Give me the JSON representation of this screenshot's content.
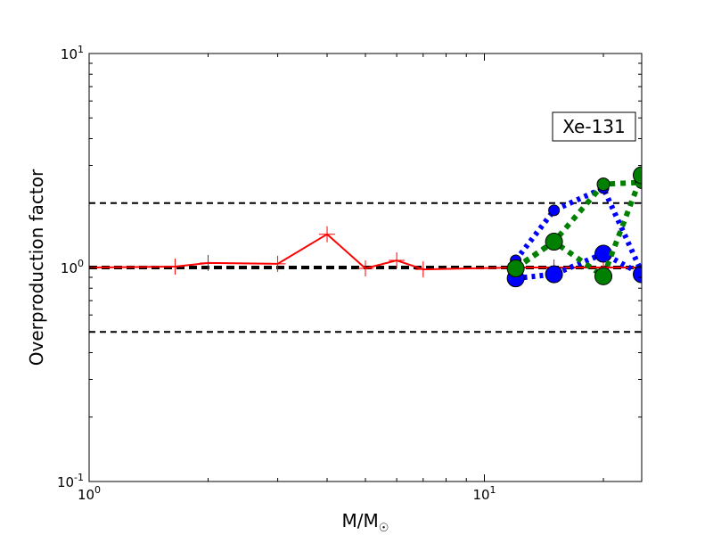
{
  "chart_data": {
    "type": "line",
    "xscale": "log",
    "yscale": "log",
    "xlim": [
      1,
      25
    ],
    "ylim": [
      0.1,
      10
    ],
    "xlabel": {
      "main": "M/M",
      "sub": "☉"
    },
    "ylabel": "Overproduction factor",
    "xticks": [
      {
        "value": 1,
        "base": "10",
        "exp": "0"
      },
      {
        "value": 10,
        "base": "10",
        "exp": "1"
      }
    ],
    "yticks": [
      {
        "value": 0.1,
        "base": "10",
        "exp": "-1"
      },
      {
        "value": 1,
        "base": "10",
        "exp": "0"
      },
      {
        "value": 10,
        "base": "10",
        "exp": "1"
      }
    ],
    "annotation": "Xe-131",
    "reference_lines": [
      {
        "y": 2.0,
        "style": "dashed",
        "color": "#000000",
        "width": 2
      },
      {
        "y": 1.0,
        "style": "dashed",
        "color": "#000000",
        "width": 4
      },
      {
        "y": 0.5,
        "style": "dashed",
        "color": "#000000",
        "width": 2
      }
    ],
    "series": [
      {
        "color": "#ff0000",
        "line": "solid",
        "marker": "plus",
        "x": [
          1.0,
          1.65,
          2.0,
          3.0,
          4.0,
          5.0,
          6.0,
          7.0,
          12.0,
          15.0,
          20.0,
          25.0
        ],
        "y": [
          1.0,
          1.01,
          1.05,
          1.04,
          1.43,
          0.99,
          1.08,
          0.98,
          1.0,
          1.0,
          1.0,
          1.0
        ]
      },
      {
        "color": "#0000ff",
        "line": "dotted",
        "marker": "circle-small",
        "x": [
          12.0,
          15.0,
          20.0,
          25.0
        ],
        "y": [
          1.08,
          1.85,
          2.35,
          0.95
        ]
      },
      {
        "color": "#0000ff",
        "line": "dotted",
        "marker": "circle-large",
        "x": [
          12.0,
          15.0,
          20.0,
          25.0
        ],
        "y": [
          0.89,
          0.93,
          1.16,
          0.93
        ]
      },
      {
        "color": "#008000",
        "line": "dotted",
        "marker": "circle-medium",
        "x": [
          12.0,
          15.0,
          20.0,
          25.0
        ],
        "y": [
          1.0,
          1.32,
          2.45,
          2.5
        ]
      },
      {
        "color": "#008000",
        "line": "dotted",
        "marker": "circle-large",
        "x": [
          12.0,
          15.0,
          20.0,
          25.0
        ],
        "y": [
          0.99,
          1.32,
          0.91,
          2.7
        ]
      }
    ]
  }
}
